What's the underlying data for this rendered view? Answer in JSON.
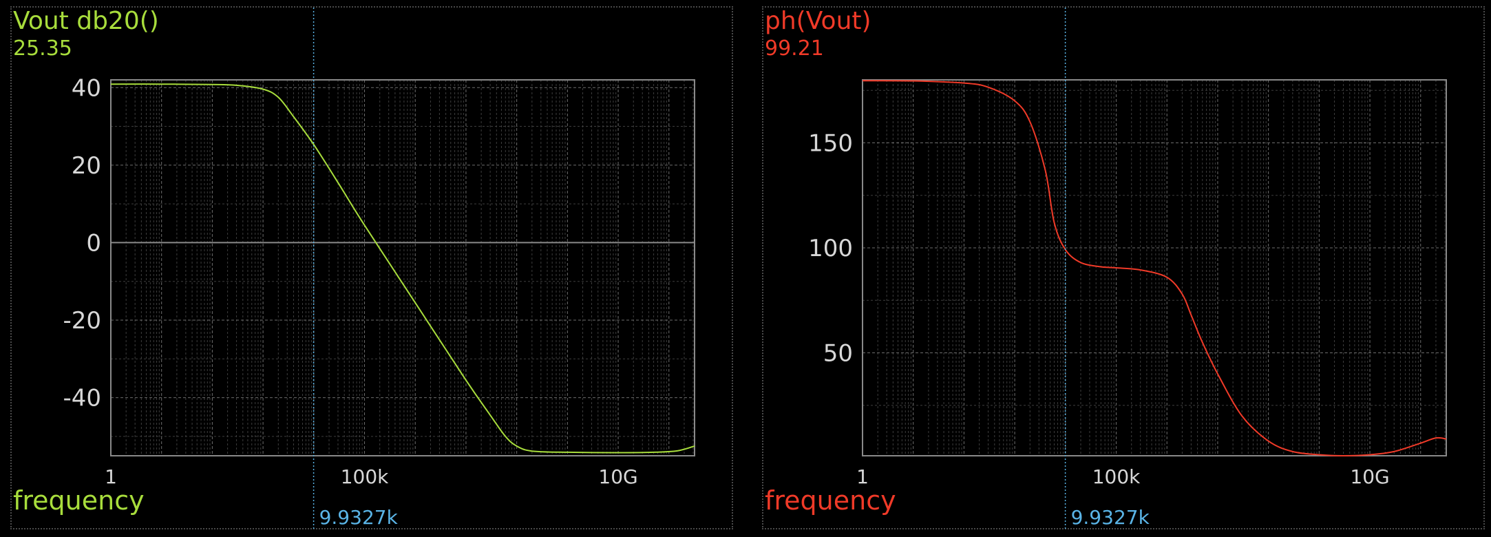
{
  "colors": {
    "background": "#000000",
    "grid_major": "#6e6e6e",
    "grid_minor": "#3e3e3e",
    "axis_text": "#d8d8d8",
    "cursor": "#5ab4e6"
  },
  "cursor": {
    "frequency": 9932.7,
    "label": "9.9327k"
  },
  "chart_data": [
    {
      "type": "line",
      "title": "Vout db20()",
      "cursor_value": "25.35",
      "xlabel": "frequency",
      "ylabel": "",
      "xscale": "log",
      "xlim": [
        1,
        320000000000.0
      ],
      "ylim": [
        -55,
        42
      ],
      "x_ticks": [
        1,
        100000,
        10000000000
      ],
      "x_tick_labels": [
        "1",
        "100k",
        "10G"
      ],
      "y_ticks": [
        40,
        20,
        0,
        -20,
        -40
      ],
      "y_tick_labels": [
        "40",
        "20",
        "0",
        "-20",
        "-40"
      ],
      "y_minor_step": 10,
      "grid": true,
      "color": "#a8dd3c",
      "series": [
        {
          "x": [
            1,
            10,
            100,
            300,
            1000,
            2000,
            4000,
            9932.7,
            30000,
            100000,
            1000000,
            10000000,
            30000000,
            60000000,
            100000000,
            200000000,
            1000000000,
            10000000000,
            50000000000,
            150000000000,
            320000000000
          ],
          "y": [
            40.9,
            40.9,
            40.8,
            40.6,
            39.6,
            37.5,
            32.5,
            25.35,
            15.5,
            4.5,
            -15.5,
            -35.5,
            -44.5,
            -50,
            -52.5,
            -53.8,
            -54.1,
            -54.2,
            -54.1,
            -53.7,
            -52.5
          ]
        }
      ]
    },
    {
      "type": "line",
      "title": "ph(Vout)",
      "cursor_value": "99.21",
      "xlabel": "frequency",
      "ylabel": "",
      "xscale": "log",
      "xlim": [
        1,
        320000000000.0
      ],
      "ylim": [
        1,
        180
      ],
      "x_ticks": [
        1,
        100000,
        10000000000
      ],
      "x_tick_labels": [
        "1",
        "100k",
        "10G"
      ],
      "y_ticks": [
        150,
        100,
        50
      ],
      "y_tick_labels": [
        "150",
        "100",
        "50"
      ],
      "y_minor_step": 25,
      "grid": true,
      "color": "#f03a28",
      "series": [
        {
          "x": [
            1,
            10,
            100,
            300,
            1000,
            2000,
            4000,
            6000,
            9932.7,
            20000,
            50000,
            100000,
            300000,
            1000000,
            2000000,
            3000000,
            5000000,
            10000000,
            30000000,
            100000000,
            300000000,
            1000000000,
            3000000000,
            10000000000,
            30000000000,
            100000000000,
            200000000000,
            320000000000
          ],
          "y": [
            179.6,
            179.5,
            178.5,
            176.5,
            170,
            160,
            137,
            112,
            99.21,
            93,
            91,
            90.5,
            89.5,
            86,
            78,
            68,
            55,
            40,
            20,
            8,
            3,
            1.5,
            1,
            1.5,
            3,
            7,
            9.5,
            9
          ]
        }
      ]
    }
  ]
}
